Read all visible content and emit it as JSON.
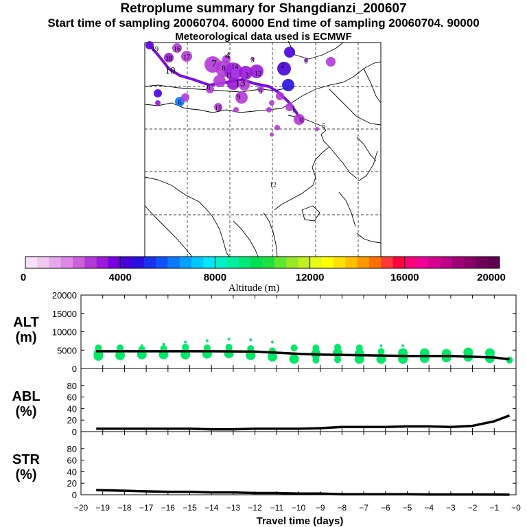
{
  "header": {
    "title": "Retroplume summary for Shangdianzi_200607",
    "subtitle": "Start time of sampling 20060704. 60000     End time of sampling 20060704. 90000",
    "met": "Meteorological data used is ECMWF"
  },
  "colorbar": {
    "label": "Altitude (m)",
    "ticks": [
      "0",
      "4000",
      "8000",
      "12000",
      "16000",
      "20000"
    ],
    "colors": [
      "#f8e0f8",
      "#f0c8f0",
      "#e8a8ec",
      "#dc88e4",
      "#cc60dc",
      "#b438d8",
      "#9a18d8",
      "#7800e0",
      "#4800d8",
      "#2810e0",
      "#1830f0",
      "#1050f8",
      "#0a78ff",
      "#08a0ff",
      "#00c8ff",
      "#00e8f8",
      "#00f0c8",
      "#00f0a0",
      "#00e878",
      "#00e050",
      "#20e040",
      "#60e830",
      "#98e828",
      "#c0f020",
      "#e8f818",
      "#ffff00",
      "#ffe000",
      "#ffc000",
      "#ff9800",
      "#ff7000",
      "#ff3838",
      "#ff0040",
      "#ff0078",
      "#f00098",
      "#d80090",
      "#c00088",
      "#a00078",
      "#880068",
      "#700058",
      "#600050"
    ]
  },
  "map": {
    "labels": [
      {
        "t": "1"
      },
      {
        "t": "2"
      },
      {
        "t": "3"
      },
      {
        "t": "4"
      },
      {
        "t": "5"
      },
      {
        "t": "6"
      },
      {
        "t": "7"
      },
      {
        "t": "8"
      },
      {
        "t": "9"
      },
      {
        "t": "10"
      },
      {
        "t": "11"
      },
      {
        "t": "12"
      },
      {
        "t": "13"
      },
      {
        "t": "14"
      },
      {
        "t": "15"
      },
      {
        "t": "16"
      },
      {
        "t": "17"
      },
      {
        "t": "18"
      },
      {
        "t": "19"
      },
      {
        "t": "0"
      },
      {
        "t": "3"
      },
      {
        "t": "8"
      },
      {
        "t": "5"
      },
      {
        "t": "6"
      },
      {
        "t": "12"
      }
    ]
  },
  "chart_data": [
    {
      "type": "line",
      "panel": "ALT",
      "ylabel_lines": [
        "ALT",
        "(m)"
      ],
      "ylim": [
        0,
        20000
      ],
      "yticks": [
        "0",
        "5000",
        "10000",
        "15000",
        "20000"
      ],
      "x": [
        -19.3,
        -18,
        -17,
        -16,
        -15,
        -14,
        -13,
        -12,
        -11,
        -10,
        -9,
        -8,
        -7,
        -6,
        -5,
        -4,
        -3,
        -2,
        -1,
        -0.3
      ],
      "y": [
        4700,
        4700,
        4700,
        4700,
        4700,
        4700,
        4650,
        4600,
        4300,
        4000,
        3800,
        3700,
        3600,
        3500,
        3400,
        3400,
        3400,
        3200,
        3000,
        2500
      ],
      "points": [
        {
          "x": -19.2,
          "y": 5600
        },
        {
          "x": -19.2,
          "y": 4800
        },
        {
          "x": -19.2,
          "y": 4000
        },
        {
          "x": -19.2,
          "y": 3400
        },
        {
          "x": -18.2,
          "y": 5600
        },
        {
          "x": -18.2,
          "y": 4700
        },
        {
          "x": -18.2,
          "y": 3600
        },
        {
          "x": -17.2,
          "y": 6200
        },
        {
          "x": -17.2,
          "y": 5200
        },
        {
          "x": -17.2,
          "y": 3800
        },
        {
          "x": -16.2,
          "y": 6600
        },
        {
          "x": -16.2,
          "y": 5400
        },
        {
          "x": -16.2,
          "y": 3800
        },
        {
          "x": -15.2,
          "y": 7200
        },
        {
          "x": -15.2,
          "y": 5800
        },
        {
          "x": -15.2,
          "y": 4800
        },
        {
          "x": -15.2,
          "y": 3800
        },
        {
          "x": -14.2,
          "y": 7600
        },
        {
          "x": -14.2,
          "y": 5600
        },
        {
          "x": -14.2,
          "y": 4000
        },
        {
          "x": -13.2,
          "y": 8000
        },
        {
          "x": -13.2,
          "y": 5800
        },
        {
          "x": -13.2,
          "y": 4100
        },
        {
          "x": -12.2,
          "y": 7800
        },
        {
          "x": -12.2,
          "y": 5400
        },
        {
          "x": -12.2,
          "y": 3600
        },
        {
          "x": -11.2,
          "y": 7200
        },
        {
          "x": -11.2,
          "y": 4800
        },
        {
          "x": -11.2,
          "y": 3200
        },
        {
          "x": -10.2,
          "y": 5600
        },
        {
          "x": -10.2,
          "y": 2600
        },
        {
          "x": -9.2,
          "y": 5600
        },
        {
          "x": -9.2,
          "y": 4000
        },
        {
          "x": -9.2,
          "y": 2300
        },
        {
          "x": -8.2,
          "y": 5800
        },
        {
          "x": -8.2,
          "y": 4200
        },
        {
          "x": -8.2,
          "y": 2400
        },
        {
          "x": -7.2,
          "y": 5600
        },
        {
          "x": -7.2,
          "y": 4000
        },
        {
          "x": -7.2,
          "y": 2600
        },
        {
          "x": -6.2,
          "y": 6200
        },
        {
          "x": -6.2,
          "y": 4600
        },
        {
          "x": -6.2,
          "y": 2600
        },
        {
          "x": -5.2,
          "y": 6200
        },
        {
          "x": -5.2,
          "y": 4200
        },
        {
          "x": -5.2,
          "y": 2600
        },
        {
          "x": -4.2,
          "y": 4200
        },
        {
          "x": -4.2,
          "y": 2800
        },
        {
          "x": -3.2,
          "y": 4000
        },
        {
          "x": -3.2,
          "y": 3000
        },
        {
          "x": -2.2,
          "y": 4400
        },
        {
          "x": -2.2,
          "y": 3200
        },
        {
          "x": -1.2,
          "y": 4200
        },
        {
          "x": -1.2,
          "y": 2800
        },
        {
          "x": -0.3,
          "y": 2300
        }
      ]
    },
    {
      "type": "line",
      "panel": "ABL",
      "ylabel_lines": [
        "ABL",
        "(%)"
      ],
      "ylim": [
        0,
        100
      ],
      "yticks": [
        "0",
        "20",
        "40",
        "60",
        "80"
      ],
      "x": [
        -19.3,
        -18,
        -17,
        -16,
        -15,
        -14,
        -13,
        -12,
        -11,
        -10,
        -9,
        -8,
        -7,
        -6,
        -5,
        -4,
        -3,
        -2,
        -1,
        -0.3
      ],
      "y": [
        5,
        5,
        5,
        5,
        5,
        4,
        4,
        5,
        5,
        5,
        6,
        8,
        8,
        8,
        9,
        9,
        8,
        10,
        18,
        28
      ]
    },
    {
      "type": "line",
      "panel": "STR",
      "ylabel_lines": [
        "STR",
        "(%)"
      ],
      "ylim": [
        0,
        100
      ],
      "yticks": [
        "0",
        "20",
        "40",
        "60",
        "80"
      ],
      "x": [
        -19.3,
        -18,
        -17,
        -16,
        -15,
        -14,
        -13,
        -12,
        -11,
        -10,
        -9,
        -8,
        -7,
        -6,
        -5,
        -4,
        -3,
        -2,
        -1,
        -0.3
      ],
      "y": [
        8,
        7,
        6,
        5,
        5,
        4,
        4,
        3,
        3,
        2,
        2,
        1,
        1,
        1,
        1,
        0.5,
        0.5,
        0.5,
        0.2,
        0.1
      ]
    }
  ],
  "xaxis": {
    "label": "Travel time (days)",
    "xlim": [
      -20,
      0
    ],
    "ticks": [
      "−20",
      "−19",
      "−18",
      "−17",
      "−16",
      "−15",
      "−14",
      "−13",
      "−12",
      "−11",
      "−10",
      "−9",
      "−8",
      "−7",
      "−6",
      "−5",
      "−4",
      "−3",
      "−2",
      "−1",
      "−0"
    ]
  }
}
